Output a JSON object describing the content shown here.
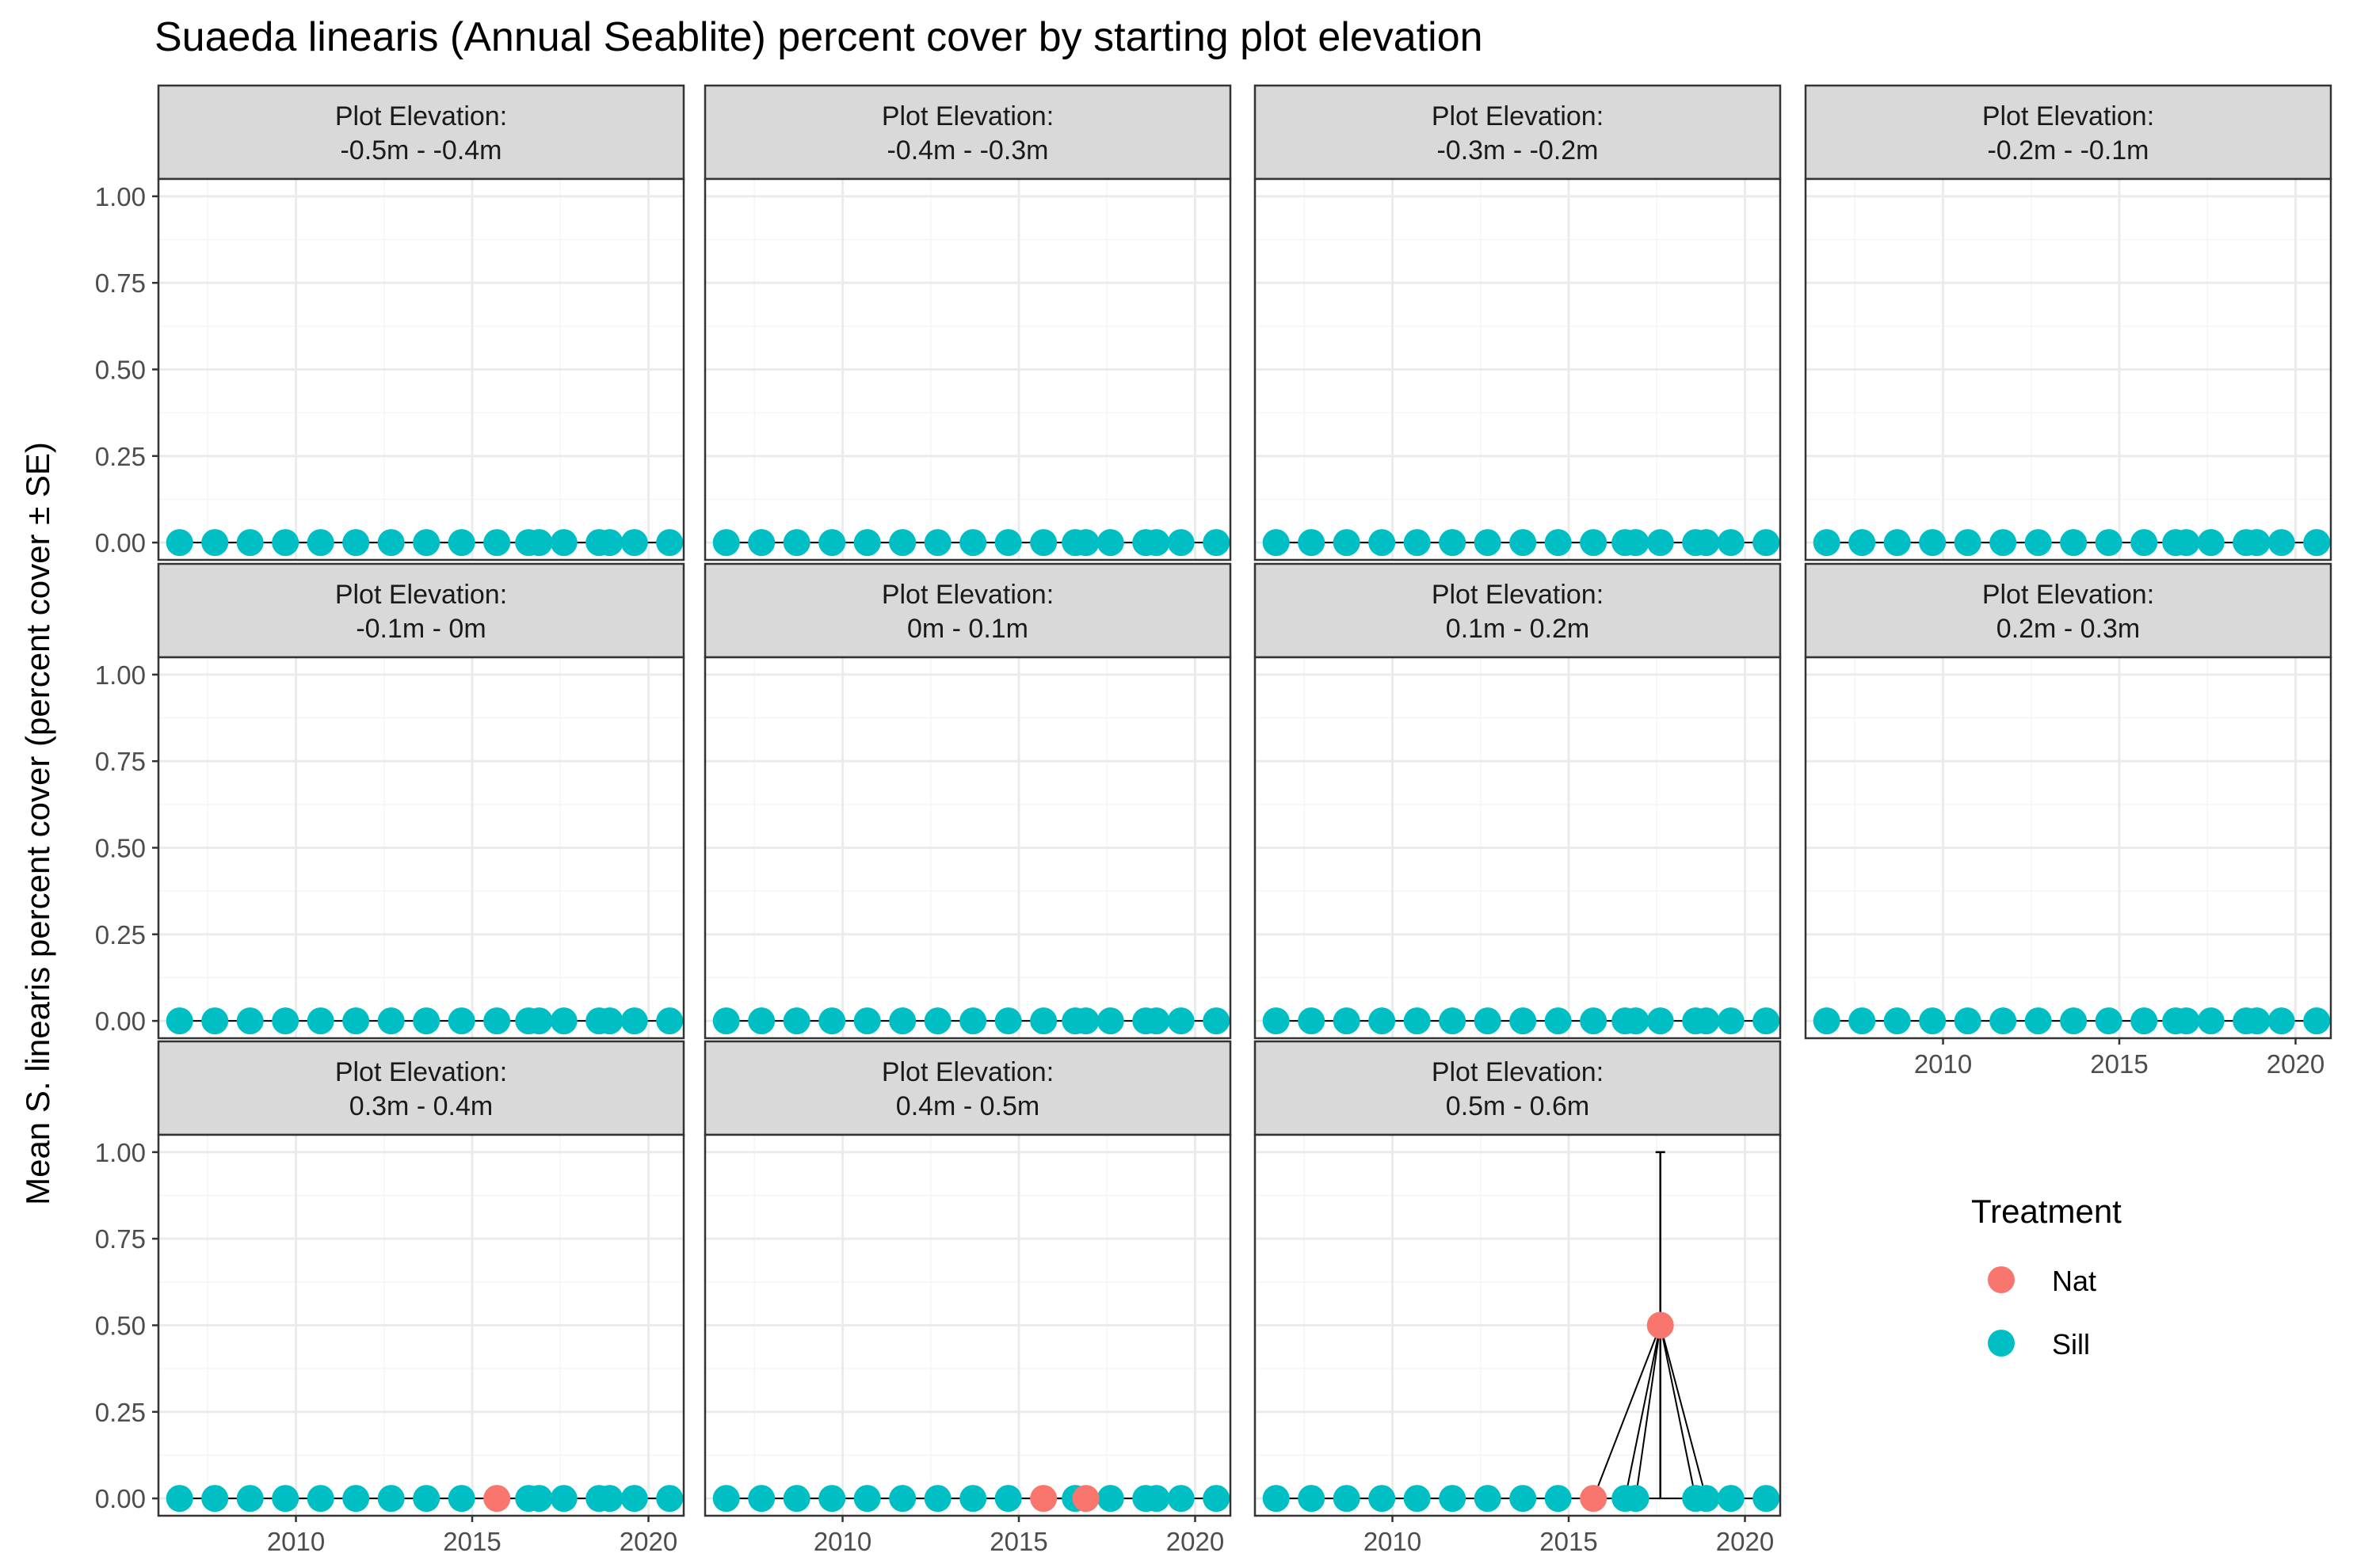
{
  "title": "Suaeda linearis (Annual Seablite) percent cover by starting plot elevation",
  "ylabel": "Mean S. linearis percent cover (percent cover ± SE)",
  "legend": {
    "title": "Treatment",
    "entries": [
      {
        "name": "Nat",
        "color": "#F8766D"
      },
      {
        "name": "Sill",
        "color": "#00BFC4"
      }
    ]
  },
  "colors": {
    "nat": "#F8766D",
    "sill": "#00BFC4",
    "strip_bg": "#D9D9D9",
    "panel_border": "#333333",
    "grid_major": "#EBEBEB",
    "grid_minor": "#F5F5F5"
  },
  "chart_data": {
    "type": "scatter",
    "facet_label_prefix": "Plot Elevation:",
    "xlim": [
      2006.1,
      2021.0
    ],
    "ylim": [
      -0.05,
      1.05
    ],
    "x_ticks": [
      2010,
      2015,
      2020
    ],
    "y_ticks": [
      0.0,
      0.25,
      0.5,
      0.75,
      1.0
    ],
    "y_tick_labels": [
      "0.00",
      "0.25",
      "0.50",
      "0.75",
      "1.00"
    ],
    "sill_years": [
      2006.7,
      2007.7,
      2008.7,
      2009.7,
      2010.7,
      2011.7,
      2012.7,
      2013.7,
      2014.7,
      2015.7,
      2016.6,
      2016.9,
      2017.6,
      2018.6,
      2018.9,
      2019.6,
      2020.6
    ],
    "panels": [
      {
        "label": "-0.5m - -0.4m",
        "nat": []
      },
      {
        "label": "-0.4m - -0.3m",
        "nat": []
      },
      {
        "label": "-0.3m - -0.2m",
        "nat": []
      },
      {
        "label": "-0.2m - -0.1m",
        "nat": []
      },
      {
        "label": "-0.1m - 0m",
        "nat": []
      },
      {
        "label": "0m - 0.1m",
        "nat": []
      },
      {
        "label": "0.1m - 0.2m",
        "nat": []
      },
      {
        "label": "0.2m - 0.3m",
        "nat": []
      },
      {
        "label": "0.3m - 0.4m",
        "nat": [
          {
            "x": 2015.7,
            "y": 0.0
          }
        ]
      },
      {
        "label": "0.4m - 0.5m",
        "nat": [
          {
            "x": 2015.7,
            "y": 0.0
          },
          {
            "x": 2016.9,
            "y": 0.0
          }
        ]
      },
      {
        "label": "0.5m - 0.6m",
        "nat": [
          {
            "x": 2015.7,
            "y": 0.0
          },
          {
            "x": 2017.6,
            "y": 0.5,
            "se": 0.5
          }
        ]
      }
    ]
  }
}
